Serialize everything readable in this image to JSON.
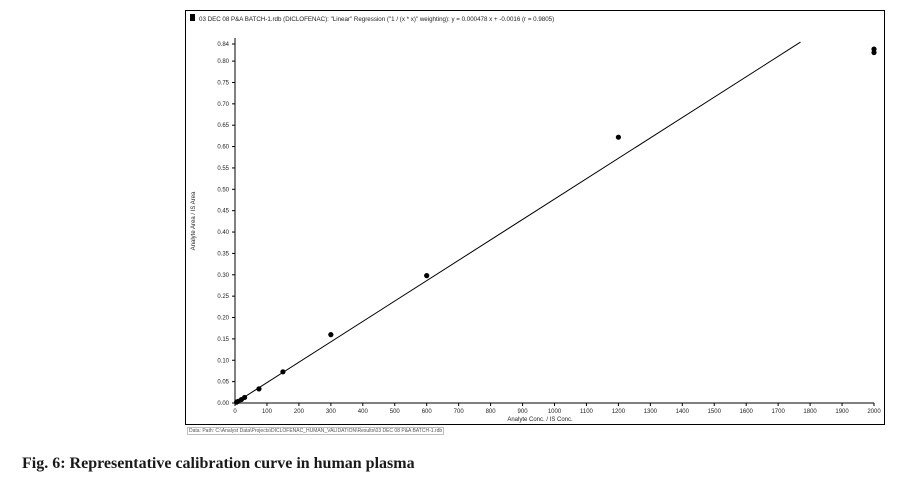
{
  "chart_data": {
    "type": "scatter",
    "title": "03 DEC 08 P&A BATCH-1.rdb (DICLOFENAC): \"Linear\" Regression (\"1 / (x * x)\" weighting): y = 0.000478 x + -0.0016 (r = 0.9805)",
    "xlabel": "Analyte Conc. / IS Conc.",
    "ylabel": "Analyte Area / IS Area",
    "xlim": [
      0,
      2000
    ],
    "ylim": [
      0,
      0.84
    ],
    "x_ticks": [
      0,
      100,
      200,
      300,
      400,
      500,
      600,
      700,
      800,
      900,
      1000,
      1100,
      1200,
      1300,
      1400,
      1500,
      1600,
      1700,
      1800,
      1900,
      2000
    ],
    "x_tick_labels": [
      "0",
      "100",
      "200",
      "300",
      "400",
      "500",
      "600",
      "700",
      "800",
      "900",
      "1000",
      "1100",
      "1200",
      "1300",
      "1400",
      "1500",
      "1600",
      "1700",
      "1800",
      "1900",
      "2000"
    ],
    "y_ticks": [
      0,
      0.05,
      0.1,
      0.15,
      0.2,
      0.25,
      0.3,
      0.35,
      0.4,
      0.45,
      0.5,
      0.55,
      0.6,
      0.65,
      0.7,
      0.75,
      0.8,
      0.84
    ],
    "y_tick_labels": [
      "0.00",
      "0.05",
      "0.10",
      "0.15",
      "0.20",
      "0.25",
      "0.30",
      "0.35",
      "0.40",
      "0.45",
      "0.50",
      "0.55",
      "0.60",
      "0.65",
      "0.70",
      "0.75",
      "0.80",
      "0.84"
    ],
    "points": [
      {
        "x": 5,
        "y": 0.002
      },
      {
        "x": 10,
        "y": 0.004
      },
      {
        "x": 20,
        "y": 0.008
      },
      {
        "x": 30,
        "y": 0.013
      },
      {
        "x": 75,
        "y": 0.033
      },
      {
        "x": 150,
        "y": 0.073
      },
      {
        "x": 300,
        "y": 0.16
      },
      {
        "x": 600,
        "y": 0.298
      },
      {
        "x": 1200,
        "y": 0.622
      },
      {
        "x": 2000,
        "y": 0.82
      },
      {
        "x": 2000,
        "y": 0.828
      }
    ],
    "regression": {
      "slope": 0.000478,
      "intercept": -0.0016,
      "x_start": 0,
      "x_end": 1770
    },
    "grid": false,
    "colors": {
      "line": "#000000",
      "marker": "#000000"
    }
  },
  "footer_path": "Data: Path: C:\\Analyst Data\\Projects\\DICLOFENAC_HUMAN_VALIDATION\\Results\\03 DEC 08 P&A BATCH-1.rdb",
  "caption": "Fig. 6: Representative calibration curve in human plasma"
}
